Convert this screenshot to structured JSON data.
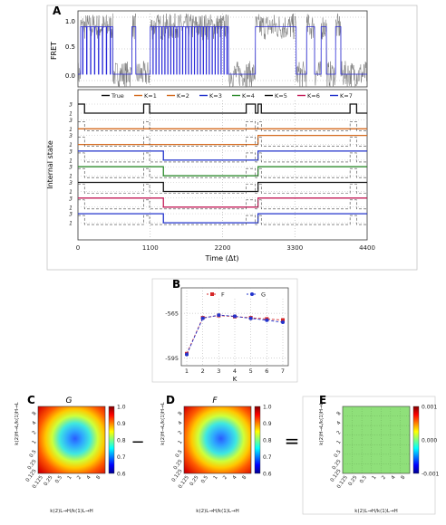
{
  "panels": {
    "a": {
      "label": "A",
      "ylabel_top": "FRET",
      "ylabel_bottom": "Internal state",
      "xlabel": "Time (Δt)",
      "xticks": [
        "0",
        "1100",
        "2200",
        "3300",
        "4400"
      ],
      "yticks_top": [
        "1.0",
        "0.5",
        "0.0"
      ],
      "state_tick_labels": [
        "3",
        "1"
      ],
      "legend": [
        "True",
        "K=1",
        "K=2",
        "K=3",
        "K=4",
        "K=5",
        "K=6",
        "K=7"
      ]
    },
    "b": {
      "label": "B",
      "xlabel": "K",
      "legend": [
        "F",
        "G"
      ]
    },
    "c": {
      "label": "C",
      "title": "G"
    },
    "d": {
      "label": "D",
      "title": "F"
    },
    "e": {
      "label": "E"
    },
    "minus": "−",
    "equals": "=",
    "heat_xlabel": "k(2)L→H/k(1)L→H",
    "heat_ylabel": "k(2)H→L/k(1)H→L",
    "heat_ticks": [
      "0.125",
      "0.25",
      "0.5",
      "1",
      "2",
      "4",
      "8"
    ]
  },
  "chart_data": [
    {
      "type": "line",
      "panel": "A-top",
      "ylabel": "FRET",
      "xlim": [
        0,
        4400
      ],
      "ylim": [
        -0.1,
        1.1
      ],
      "low_level": 0.1,
      "high_level": 0.85,
      "fit_series_color": "#2b2bd9",
      "raw_series_color": "#777777",
      "high_segments": [
        [
          40,
          530
        ],
        [
          820,
          880
        ],
        [
          1100,
          2290
        ],
        [
          2700,
          3320
        ],
        [
          3480,
          3600
        ],
        [
          3700,
          3780
        ],
        [
          3920,
          4000
        ]
      ]
    },
    {
      "type": "line",
      "panel": "A-bottom",
      "ylabel": "Internal state",
      "xlabel": "Time (Δt)",
      "xlim": [
        0,
        4400
      ],
      "series": [
        {
          "name": "True",
          "color": "#111111",
          "breakpoints": [
            [
              0,
              3
            ],
            [
              100,
              1
            ],
            [
              1000,
              3
            ],
            [
              1090,
              1
            ],
            [
              2560,
              3
            ],
            [
              2700,
              1
            ],
            [
              2740,
              3
            ],
            [
              2790,
              1
            ],
            [
              4140,
              3
            ],
            [
              4240,
              1
            ]
          ]
        },
        {
          "name": "K=1",
          "color": "#d46a1f",
          "breakpoints": [
            [
              0,
              1
            ]
          ]
        },
        {
          "name": "K=2",
          "color": "#d46a1f",
          "breakpoints": [
            [
              0,
              1
            ],
            [
              2740,
              3
            ]
          ]
        },
        {
          "name": "K=3",
          "color": "#2233cc",
          "breakpoints": [
            [
              0,
              3
            ],
            [
              1300,
              1
            ],
            [
              2740,
              3
            ]
          ]
        },
        {
          "name": "K=4",
          "color": "#2e8b2e",
          "breakpoints": [
            [
              0,
              3
            ],
            [
              1300,
              1
            ],
            [
              2740,
              3
            ]
          ]
        },
        {
          "name": "K=5",
          "color": "#111111",
          "breakpoints": [
            [
              0,
              3
            ],
            [
              1300,
              1
            ],
            [
              2740,
              3
            ]
          ]
        },
        {
          "name": "K=6",
          "color": "#c41e5a",
          "breakpoints": [
            [
              0,
              3
            ],
            [
              1300,
              1
            ],
            [
              2740,
              3
            ]
          ]
        },
        {
          "name": "K=7",
          "color": "#2233cc",
          "breakpoints": [
            [
              0,
              3
            ],
            [
              1300,
              1
            ],
            [
              2740,
              3
            ]
          ]
        }
      ]
    },
    {
      "type": "line",
      "panel": "B",
      "xlabel": "K",
      "categories": [
        1,
        2,
        3,
        4,
        5,
        6,
        7
      ],
      "yticks": [
        -565,
        -595
      ],
      "ylim": [
        -600,
        -548
      ],
      "series": [
        {
          "name": "F",
          "color": "#d62728",
          "values": [
            -592,
            -568,
            -566.5,
            -567.2,
            -568,
            -568.8,
            -569.5
          ]
        },
        {
          "name": "G",
          "color": "#2233cc",
          "values": [
            -592.5,
            -568.3,
            -566.2,
            -567,
            -568.4,
            -569.6,
            -571
          ]
        }
      ]
    },
    {
      "type": "heatmap",
      "panel": "C",
      "title": "G",
      "colorbar_ticks": [
        "1.0",
        "0.9",
        "0.8",
        "0.7",
        "0.6"
      ],
      "vmin": 0.6,
      "vmax": 1.0,
      "center_value": 0.6,
      "corner_value": 1.0
    },
    {
      "type": "heatmap",
      "panel": "D",
      "title": "F",
      "colorbar_ticks": [
        "1.0",
        "0.9",
        "0.8",
        "0.7",
        "0.6"
      ],
      "vmin": 0.6,
      "vmax": 1.0,
      "center_value": 0.6,
      "corner_value": 1.0
    },
    {
      "type": "heatmap",
      "panel": "E",
      "colorbar_ticks": [
        "0.001",
        "0.000",
        "-0.001"
      ],
      "vmin": -0.001,
      "vmax": 0.001,
      "uniform_value": 0.0,
      "fill_color": "#8fe07a"
    }
  ]
}
